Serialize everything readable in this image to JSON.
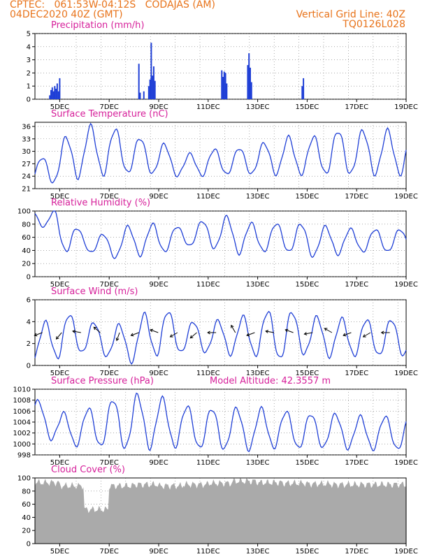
{
  "header": {
    "line1_left": "CPTEC:   061:53W-04:12S   CODAJAS (AM)",
    "line2_left": "04DEC2020 40Z (GMT)",
    "line2_right": "Vertical Grid Line: 40Z",
    "line3_right": "TQ0126L028"
  },
  "colors": {
    "header": "#e8731a",
    "title": "#d61f9a",
    "series": "#1f3fd6",
    "cloud": "#aaaaaa",
    "grid": "#777777"
  },
  "chart_data": [
    {
      "type": "bar",
      "title": "Precipitation (mm/h)",
      "x_tick_labels": [
        "5DEC",
        "7DEC",
        "9DEC",
        "11DEC",
        "13DEC",
        "15DEC",
        "17DEC",
        "19DEC"
      ],
      "ylim": [
        0,
        5
      ],
      "y_ticks": [
        0,
        1,
        2,
        3,
        4,
        5
      ],
      "grid": true,
      "x": [
        4.6,
        4.65,
        4.7,
        4.75,
        4.8,
        4.85,
        4.9,
        4.95,
        5.0,
        8.2,
        8.25,
        8.4,
        8.6,
        8.65,
        8.7,
        8.75,
        8.8,
        8.85,
        11.55,
        11.6,
        11.65,
        11.7,
        11.75,
        12.6,
        12.65,
        12.7,
        12.75,
        14.8,
        14.85
      ],
      "values": [
        0.3,
        0.7,
        0.9,
        0.6,
        1.0,
        0.8,
        1.2,
        0.6,
        1.6,
        2.7,
        0.5,
        0.6,
        1.0,
        1.5,
        4.3,
        1.8,
        2.5,
        1.4,
        2.2,
        1.7,
        2.1,
        2.0,
        1.2,
        2.6,
        3.5,
        2.4,
        1.3,
        1.0,
        1.6
      ]
    },
    {
      "type": "line",
      "title": "Surface Temperature (nC)",
      "x_tick_labels": [
        "5DEC",
        "7DEC",
        "9DEC",
        "11DEC",
        "13DEC",
        "15DEC",
        "17DEC",
        "19DEC"
      ],
      "ylim": [
        21,
        37
      ],
      "y_ticks": [
        21,
        24,
        27,
        30,
        33,
        36
      ],
      "grid": true,
      "daily_min": [
        22.0,
        22.5,
        24.2,
        24.5,
        24.8,
        24.5,
        24.0,
        24.2,
        24.5,
        24.5,
        24.5,
        24.5,
        24.5,
        24.5
      ],
      "daily_max": [
        27.0,
        32.5,
        36.0,
        36.0,
        33.5,
        32.5,
        29.0,
        30.5,
        30.5,
        31.5,
        33.5,
        33.0,
        35.0,
        35.0
      ]
    },
    {
      "type": "line",
      "title": "Relative Humidity (%)",
      "x_tick_labels": [
        "5DEC",
        "7DEC",
        "9DEC",
        "11DEC",
        "13DEC",
        "15DEC",
        "17DEC",
        "19DEC"
      ],
      "ylim": [
        0,
        100
      ],
      "y_ticks": [
        0,
        20,
        40,
        60,
        80,
        100
      ],
      "grid": true,
      "daily_min": [
        92,
        38,
        40,
        28,
        32,
        35,
        47,
        46,
        35,
        38,
        40,
        30,
        33,
        38
      ],
      "daily_max": [
        100,
        100,
        64,
        65,
        80,
        80,
        75,
        88,
        92,
        78,
        82,
        80,
        75,
        72
      ]
    },
    {
      "type": "line",
      "title": "Surface Wind (m/s)",
      "x_tick_labels": [
        "5DEC",
        "7DEC",
        "9DEC",
        "11DEC",
        "13DEC",
        "15DEC",
        "17DEC",
        "19DEC"
      ],
      "ylim": [
        0,
        6
      ],
      "y_ticks": [
        0,
        2,
        4,
        6
      ],
      "grid": true,
      "daily_min": [
        0.4,
        0.7,
        1.2,
        0.8,
        0.3,
        1.0,
        1.2,
        1.2,
        1.0,
        0.9,
        0.5,
        1.1,
        0.8,
        0.9
      ],
      "daily_max": [
        3.2,
        5.0,
        4.2,
        3.5,
        4.0,
        5.6,
        4.0,
        4.0,
        4.2,
        4.8,
        5.2,
        4.5,
        4.3,
        4.2
      ]
    },
    {
      "type": "line",
      "title": "Surface Pressure (hPa)",
      "subtitle": "Model Altitude: 42.3557 m",
      "x_tick_labels": [
        "5DEC",
        "7DEC",
        "9DEC",
        "11DEC",
        "13DEC",
        "15DEC",
        "17DEC",
        "19DEC"
      ],
      "ylim": [
        998,
        1010
      ],
      "y_ticks": [
        998,
        1000,
        1002,
        1004,
        1006,
        1008,
        1010
      ],
      "grid": true,
      "daily_min": [
        1002.5,
        1000.0,
        999.5,
        999.5,
        999.0,
        999.5,
        999.5,
        999.0,
        999.0,
        999.0,
        999.5,
        999.0,
        999.5,
        999.0
      ],
      "daily_max": [
        1008.2,
        1005.5,
        1006.2,
        1008.0,
        1009.0,
        1008.5,
        1007.0,
        1006.5,
        1006.5,
        1006.5,
        1006.0,
        1005.5,
        1005.5,
        1005.0
      ]
    },
    {
      "type": "area",
      "title": "Cloud Cover (%)",
      "x_tick_labels": [
        "5DEC",
        "7DEC",
        "9DEC",
        "11DEC",
        "13DEC",
        "15DEC",
        "17DEC",
        "19DEC"
      ],
      "ylim": [
        0,
        100
      ],
      "y_ticks": [
        0,
        20,
        40,
        60,
        80,
        100
      ],
      "grid": true,
      "daily_mean": [
        93,
        88,
        52,
        88,
        90,
        88,
        90,
        92,
        95,
        93,
        92,
        91,
        90,
        90,
        90
      ]
    }
  ]
}
